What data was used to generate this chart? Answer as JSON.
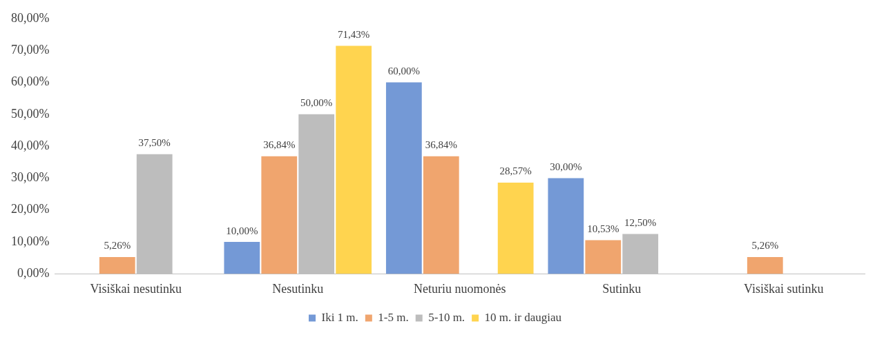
{
  "chart_data": {
    "type": "bar",
    "categories": [
      "Visiškai nesutinku",
      "Nesutinku",
      "Neturiu nuomonės",
      "Sutinku",
      "Visiškai sutinku"
    ],
    "series": [
      {
        "name": "Iki 1 m.",
        "color": "#7499d6",
        "values": [
          null,
          10,
          60,
          30,
          null
        ],
        "value_labels": [
          null,
          "10,00%",
          "60,00%",
          "30,00%",
          null
        ]
      },
      {
        "name": "1-5 m.",
        "color": "#f0a56e",
        "values": [
          5.26,
          36.84,
          36.84,
          10.53,
          5.26
        ],
        "value_labels": [
          "5,26%",
          "36,84%",
          "36,84%",
          "10,53%",
          "5,26%"
        ]
      },
      {
        "name": "5-10 m.",
        "color": "#bdbdbd",
        "values": [
          37.5,
          50,
          null,
          12.5,
          null
        ],
        "value_labels": [
          "37,50%",
          "50,00%",
          null,
          "12,50%",
          null
        ]
      },
      {
        "name": "10 m. ir daugiau",
        "color": "#ffd44f",
        "values": [
          null,
          71.43,
          28.57,
          null,
          null
        ],
        "value_labels": [
          null,
          "71,43%",
          "28,57%",
          null,
          null
        ]
      }
    ],
    "ylim": [
      0,
      80
    ],
    "yticks": [
      {
        "value": 0,
        "label": "0,00%"
      },
      {
        "value": 10,
        "label": "10,00%"
      },
      {
        "value": 20,
        "label": "20,00%"
      },
      {
        "value": 30,
        "label": "30,00%"
      },
      {
        "value": 40,
        "label": "40,00%"
      },
      {
        "value": 50,
        "label": "50,00%"
      },
      {
        "value": 60,
        "label": "60,00%"
      },
      {
        "value": 70,
        "label": "70,00%"
      },
      {
        "value": 80,
        "label": "80,00%"
      }
    ],
    "grid": false,
    "legend": "bottom"
  }
}
